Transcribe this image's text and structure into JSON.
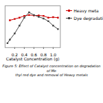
{
  "chart_data": {
    "type": "line",
    "xlabel": "Catalyst Concentration (g)",
    "caption": "Figure 5: Effect of Catalyst concentration on degradation of Me\nthyl red dye and removal of Heavy metals",
    "series": [
      {
        "name": "Heavy meta",
        "color": "#cc0000",
        "x": [
          0.1,
          0.2,
          0.3,
          0.4,
          0.5,
          0.6,
          0.7,
          0.8,
          0.9,
          1.0,
          1.1
        ],
        "values": [
          62,
          65,
          68,
          72,
          74,
          73,
          73,
          72,
          68,
          69,
          68
        ]
      },
      {
        "name": "Dye degradati",
        "color": "#444444",
        "x": [
          0.05,
          0.1,
          0.2,
          0.3,
          0.4,
          0.5,
          0.6,
          0.7,
          0.8,
          0.9,
          1.0,
          1.1
        ],
        "values": [
          10,
          18,
          32,
          50,
          68,
          80,
          74,
          70,
          66,
          60,
          50,
          42
        ]
      }
    ],
    "xlim": [
      0.0,
      1.15
    ],
    "ylim": [
      0,
      95
    ],
    "xticks": [
      0.2,
      0.4,
      0.6,
      0.8,
      {
        "value": 1.0,
        "label": "1.0"
      }
    ],
    "tick_labels": "x",
    "marker": "square",
    "legend": "right",
    "grid": false
  }
}
